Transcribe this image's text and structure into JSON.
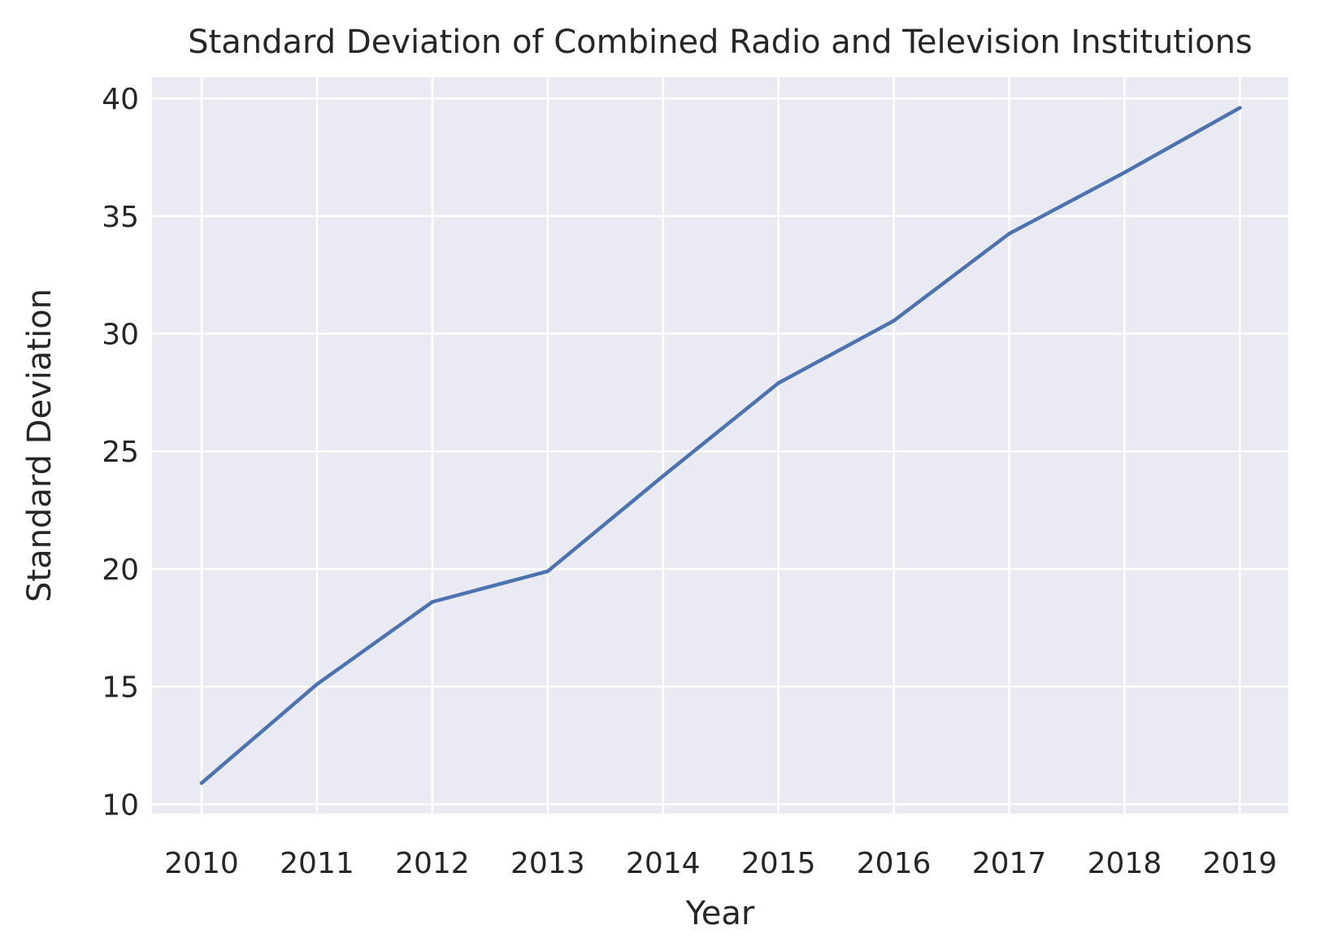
{
  "chart_data": {
    "type": "line",
    "title": "Standard Deviation of Combined Radio and Television Institutions",
    "xlabel": "Year",
    "ylabel": "Standard Deviation",
    "x": [
      2010,
      2011,
      2012,
      2013,
      2014,
      2015,
      2016,
      2017,
      2018,
      2019
    ],
    "series": [
      {
        "values": [
          10.9,
          15.1,
          18.6,
          19.9,
          23.95,
          27.9,
          30.55,
          34.25,
          36.85,
          39.6
        ]
      }
    ],
    "xticks": [
      "2010",
      "2011",
      "2012",
      "2013",
      "2014",
      "2015",
      "2016",
      "2017",
      "2018",
      "2019"
    ],
    "yticks": [
      "10",
      "15",
      "20",
      "25",
      "30",
      "35",
      "40"
    ],
    "ytick_values": [
      10,
      15,
      20,
      25,
      30,
      35,
      40
    ],
    "xlim": [
      2009.57,
      2019.42
    ],
    "ylim": [
      9.6,
      40.9
    ],
    "grid": true,
    "legend": false,
    "colors": {
      "plot_background": "#eaeaf2",
      "grid": "#ffffff",
      "line": "#4c72b0",
      "text": "#262626"
    }
  }
}
